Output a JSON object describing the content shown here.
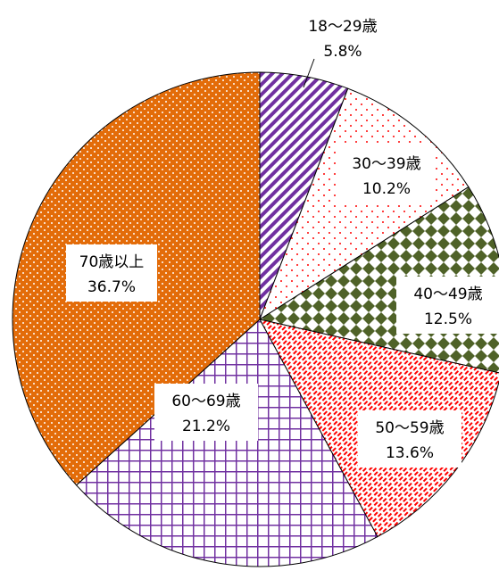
{
  "chart_data": {
    "type": "pie",
    "title": "",
    "start_angle_deg": 0,
    "direction": "clockwise",
    "slices": [
      {
        "label": "18～29歳",
        "value": 5.8,
        "value_label": "5.8%",
        "pattern": "diag-stripes",
        "color": "#7030a0"
      },
      {
        "label": "30～39歳",
        "value": 10.2,
        "value_label": "10.2%",
        "pattern": "sparse-dots",
        "color": "#ff0000"
      },
      {
        "label": "40～49歳",
        "value": 12.5,
        "value_label": "12.5%",
        "pattern": "diamonds",
        "color": "#4f6228"
      },
      {
        "label": "50～59歳",
        "value": 13.6,
        "value_label": "13.6%",
        "pattern": "dashes",
        "color": "#ff0000"
      },
      {
        "label": "60～69歳",
        "value": 21.2,
        "value_label": "21.2%",
        "pattern": "grid",
        "color": "#7030a0"
      },
      {
        "label": "70歳以上",
        "value": 36.7,
        "value_label": "36.7%",
        "pattern": "dots",
        "color": "#e36c09"
      }
    ]
  }
}
